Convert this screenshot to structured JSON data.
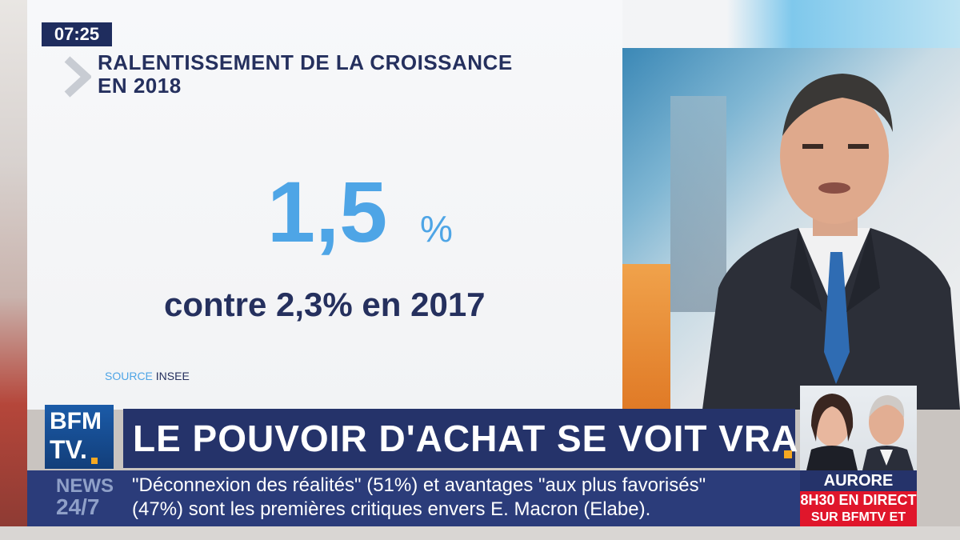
{
  "clock": "07:25",
  "graphic": {
    "title": "RALENTISSEMENT DE LA CROISSANCE\nEN 2018",
    "big_value": "1,5",
    "unit": "%",
    "comparison": "contre 2,3% en 2017",
    "source_label": "SOURCE",
    "source_name": "INSEE"
  },
  "logo": {
    "line1": "BFM",
    "line2": "TV."
  },
  "headline": "LE POUVOIR D'ACHAT SE VOIT VRAIMENT",
  "ticker": {
    "news": "NEWS",
    "news247": "24/7",
    "line1": "\"Déconnexion des réalités\" (51%) et avantages \"aux plus favorisés\"",
    "line2": "(47%) sont les premières critiques envers E. Macron (Elabe)."
  },
  "promo": {
    "name": "AURORE BERGÉ",
    "time": "8H30 EN DIRECT",
    "where": "SUR BFMTV ET RMC"
  },
  "colors": {
    "navy": "#25336a",
    "blue_number": "#4ea5e6",
    "accent_orange": "#f6a821",
    "promo_red": "#e0162b"
  }
}
